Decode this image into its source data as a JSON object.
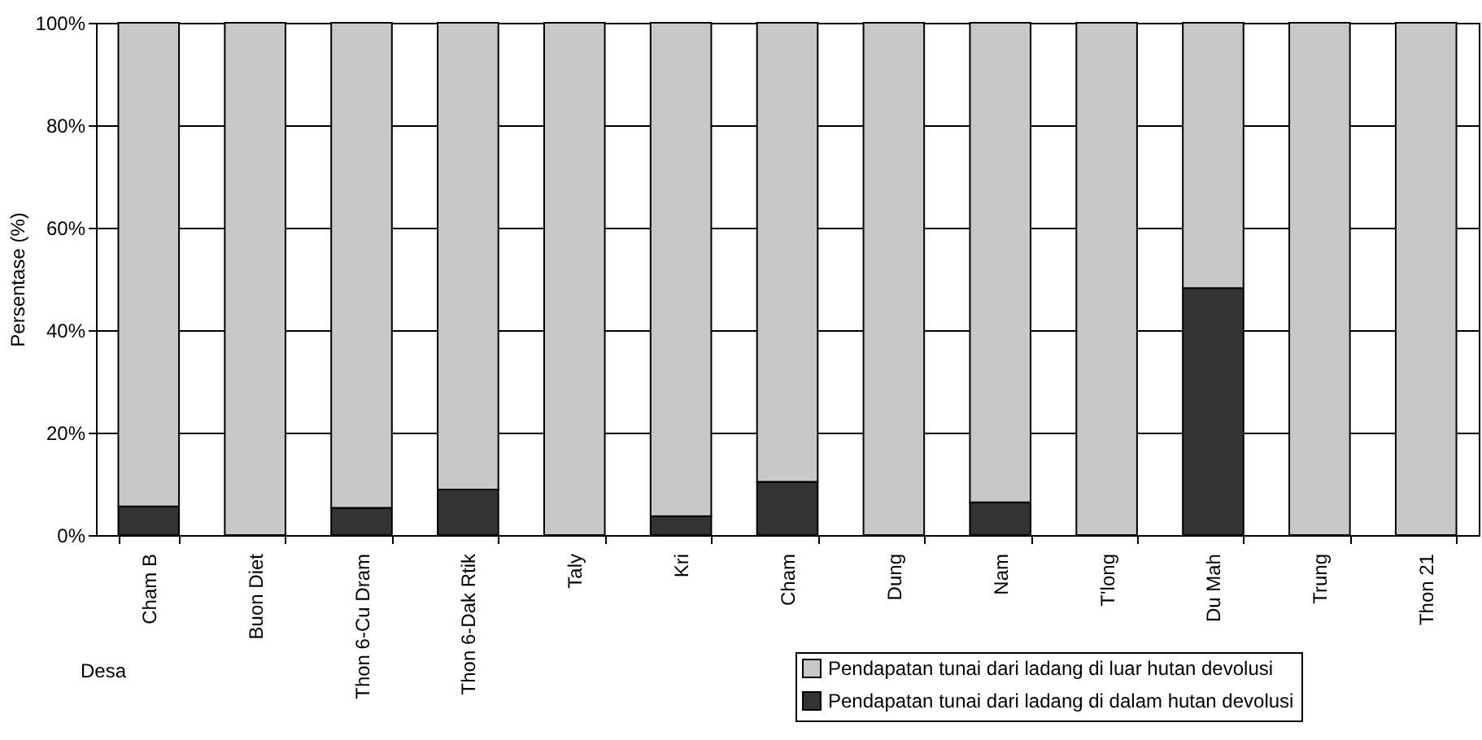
{
  "chart_data": {
    "type": "bar",
    "stacked": true,
    "xlabel": "Desa",
    "ylabel": "Persentase (%)",
    "categories": [
      "Cham B",
      "Buon Diet",
      "Thon 6-Cu Dram",
      "Thon 6-Dak Rtik",
      "Taly",
      "Kri",
      "Cham",
      "Dung",
      "Nam",
      "T'long",
      "Du Mah",
      "Trung",
      "Thon 21"
    ],
    "series": [
      {
        "name": "Pendapatan tunai dari ladang di dalam hutan devolusi",
        "color": "#333333",
        "values": [
          5.6,
          0,
          5.3,
          8.9,
          0,
          3.7,
          10.4,
          0,
          6.4,
          0,
          48.2,
          0,
          0
        ]
      },
      {
        "name": "Pendapatan tunai dari ladang di luar hutan devolusi",
        "color": "#c8c8c8",
        "values": [
          94.4,
          100,
          94.7,
          91.1,
          100,
          96.3,
          89.6,
          100,
          93.6,
          100,
          51.8,
          100,
          100
        ]
      }
    ],
    "ylim": [
      0,
      100
    ],
    "yticks": [
      {
        "value": 0,
        "label": "0%"
      },
      {
        "value": 20,
        "label": "20%"
      },
      {
        "value": 40,
        "label": "40%"
      },
      {
        "value": 60,
        "label": "60%"
      },
      {
        "value": 80,
        "label": "80%"
      },
      {
        "value": 100,
        "label": "100%"
      }
    ],
    "grid": "y",
    "legend": "bottom right"
  }
}
